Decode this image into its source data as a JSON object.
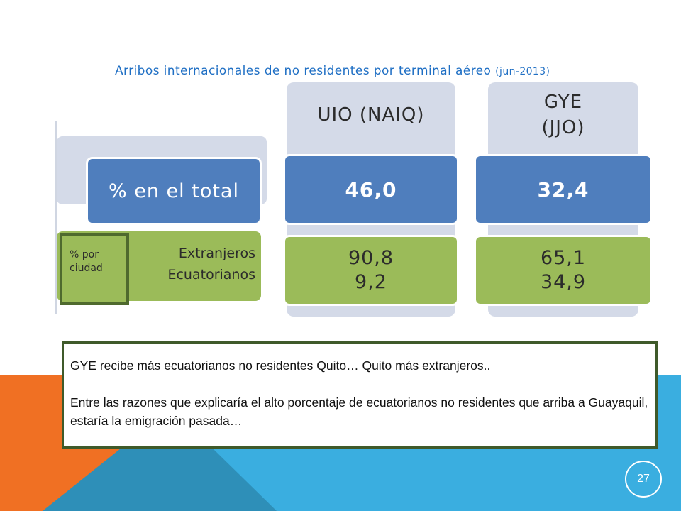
{
  "title": {
    "main": "Arribos internacionales de no residentes por terminal aéreo",
    "suffix": "(jun-2013)"
  },
  "row_labels": {
    "total": "% en el total",
    "extranjeros": "Extranjeros",
    "ecuatorianos": "Ecuatorianos",
    "por_ciudad_line1": "% por",
    "por_ciudad_line2": "ciudad"
  },
  "columns": [
    {
      "header_line1": "UIO (NAIQ)",
      "header_line2": "",
      "total": "46,0",
      "extranjeros": "90,8",
      "ecuatorianos": "9,2"
    },
    {
      "header_line1": "GYE",
      "header_line2": "(JJO)",
      "total": "32,4",
      "extranjeros": "65,1",
      "ecuatorianos": "34,9"
    }
  ],
  "note": {
    "line1": "GYE recibe más ecuatorianos no residentes Quito… Quito más extranjeros..",
    "line2": "Entre las razones que explicaría el alto porcentaje de ecuatorianos no residentes que arriba a Guayaquil, estaría la emigración pasada…"
  },
  "page_number": "27",
  "colors": {
    "blue_row": "#4f7ebd",
    "green_row": "#9bbb59",
    "gray_panel": "#d4dae8",
    "orange_bg": "#f07023",
    "cyan_bg": "#3aaee0",
    "teal_bg": "#2e8fb8",
    "title": "#1f6fc4"
  }
}
